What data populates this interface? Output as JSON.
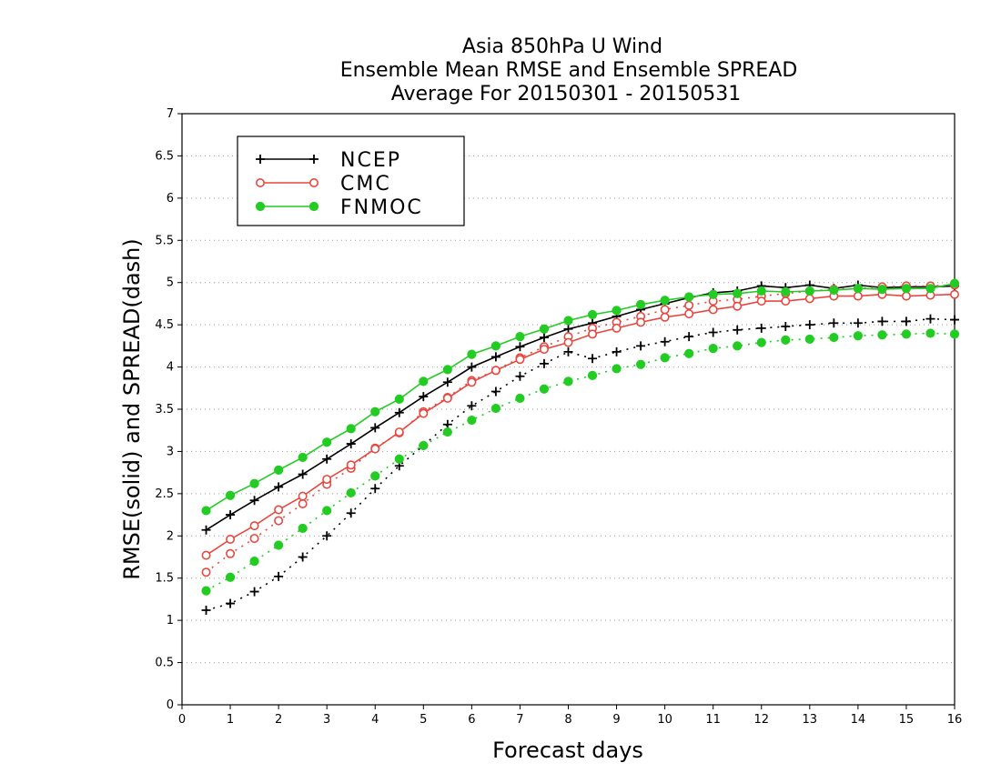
{
  "chart_data": {
    "type": "line",
    "title_lines": [
      "Asia 850hPa U Wind",
      "Ensemble Mean RMSE and Ensemble SPREAD",
      "Average For 20150301 - 20150531"
    ],
    "xlabel": "Forecast days",
    "ylabel": "RMSE(solid) and SPREAD(dash)",
    "xlim": [
      0,
      16
    ],
    "ylim": [
      0,
      7
    ],
    "x_ticks": [
      0,
      1,
      2,
      3,
      4,
      5,
      6,
      7,
      8,
      9,
      10,
      11,
      12,
      13,
      14,
      15,
      16
    ],
    "y_ticks": [
      0,
      0.5,
      1,
      1.5,
      2,
      2.5,
      3,
      3.5,
      4,
      4.5,
      5,
      5.5,
      6,
      6.5,
      7
    ],
    "grid": "horizontal dotted",
    "legend_position": "top-left",
    "x": [
      0.5,
      1,
      1.5,
      2,
      2.5,
      3,
      3.5,
      4,
      4.5,
      5,
      5.5,
      6,
      6.5,
      7,
      7.5,
      8,
      8.5,
      9,
      9.5,
      10,
      10.5,
      11,
      11.5,
      12,
      12.5,
      13,
      13.5,
      14,
      14.5,
      15,
      15.5,
      16
    ],
    "series": [
      {
        "name": "NCEP",
        "color": "#000000",
        "marker": "plus",
        "rmse": [
          2.07,
          2.25,
          2.42,
          2.58,
          2.73,
          2.91,
          3.09,
          3.28,
          3.46,
          3.65,
          3.82,
          4.0,
          4.12,
          4.24,
          4.35,
          4.45,
          4.52,
          4.6,
          4.68,
          4.75,
          4.82,
          4.88,
          4.9,
          4.96,
          4.94,
          4.97,
          4.93,
          4.97,
          4.94,
          4.95,
          4.95,
          4.96
        ],
        "spread": [
          1.12,
          1.2,
          1.34,
          1.52,
          1.75,
          2.0,
          2.27,
          2.56,
          2.83,
          3.07,
          3.32,
          3.54,
          3.71,
          3.89,
          4.04,
          4.18,
          4.1,
          4.18,
          4.25,
          4.3,
          4.36,
          4.41,
          4.44,
          4.46,
          4.48,
          4.5,
          4.52,
          4.52,
          4.54,
          4.54,
          4.57,
          4.56
        ]
      },
      {
        "name": "CMC",
        "color": "#e8473f",
        "marker": "open-circle",
        "rmse": [
          1.77,
          1.96,
          2.12,
          2.31,
          2.47,
          2.67,
          2.84,
          3.03,
          3.23,
          3.45,
          3.63,
          3.82,
          3.96,
          4.09,
          4.21,
          4.29,
          4.39,
          4.46,
          4.53,
          4.59,
          4.63,
          4.68,
          4.72,
          4.78,
          4.78,
          4.81,
          4.84,
          4.84,
          4.86,
          4.84,
          4.85,
          4.86
        ],
        "spread": [
          1.57,
          1.79,
          1.97,
          2.18,
          2.38,
          2.61,
          2.8,
          3.04,
          3.22,
          3.47,
          3.64,
          3.84,
          3.96,
          4.11,
          4.24,
          4.36,
          4.46,
          4.53,
          4.6,
          4.68,
          4.73,
          4.78,
          4.8,
          4.84,
          4.87,
          4.9,
          4.92,
          4.93,
          4.95,
          4.96,
          4.96,
          4.97
        ]
      },
      {
        "name": "FNMOC",
        "color": "#22cc22",
        "marker": "filled-circle",
        "rmse": [
          2.3,
          2.48,
          2.62,
          2.78,
          2.93,
          3.11,
          3.27,
          3.47,
          3.62,
          3.83,
          3.97,
          4.15,
          4.25,
          4.36,
          4.45,
          4.55,
          4.62,
          4.67,
          4.74,
          4.79,
          4.83,
          4.86,
          4.87,
          4.9,
          4.89,
          4.9,
          4.91,
          4.93,
          4.92,
          4.93,
          4.93,
          4.99
        ],
        "spread": [
          1.35,
          1.51,
          1.7,
          1.89,
          2.09,
          2.3,
          2.51,
          2.71,
          2.91,
          3.07,
          3.23,
          3.37,
          3.51,
          3.63,
          3.74,
          3.83,
          3.9,
          3.98,
          4.03,
          4.11,
          4.16,
          4.22,
          4.25,
          4.29,
          4.32,
          4.33,
          4.35,
          4.37,
          4.38,
          4.39,
          4.4,
          4.39
        ]
      }
    ]
  }
}
